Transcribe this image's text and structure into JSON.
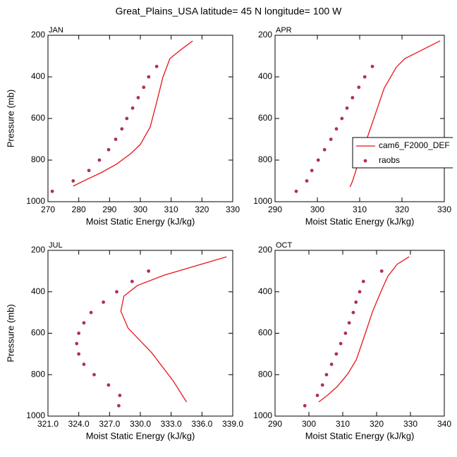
{
  "title": "Great_Plains_USA  latitude= 45 N longitude= 100 W",
  "chart_data": [
    {
      "type": "profile",
      "title": "JAN",
      "xlabel": "Moist Static Energy (kJ/kg)",
      "ylabel": "Pressure (mb)",
      "xlim": [
        270,
        330
      ],
      "xticks": [
        270,
        280,
        290,
        300,
        310,
        320,
        330
      ],
      "ylim": [
        200,
        1000
      ],
      "yticks": [
        200,
        400,
        600,
        800,
        1000
      ],
      "y_inverted": true,
      "series": [
        {
          "name": "cam6_F2000_DEF",
          "color": "#e8141c",
          "style": "line",
          "x": [
            317,
            313.3,
            309.6,
            307.3,
            305.3,
            303.2,
            300,
            296.8,
            292.2,
            287.2,
            281.9,
            278.2
          ],
          "y": [
            227,
            268,
            312,
            403,
            522,
            641,
            725,
            770,
            820,
            861,
            898,
            925
          ]
        },
        {
          "name": "raobs",
          "color": "#b0305a",
          "style": "markers",
          "x": [
            305.3,
            302.7,
            301.1,
            299.3,
            297.5,
            295.6,
            294,
            292,
            289.7,
            286.7,
            283.3,
            278.2,
            271.4
          ],
          "y": [
            350,
            400,
            450,
            500,
            550,
            600,
            650,
            700,
            750,
            800,
            850,
            900,
            950
          ]
        }
      ]
    },
    {
      "type": "profile",
      "title": "APR",
      "xlabel": "Moist Static Energy (kJ/kg)",
      "xlim": [
        290,
        330
      ],
      "xticks": [
        290,
        300,
        310,
        320,
        330
      ],
      "ylim": [
        200,
        1000
      ],
      "yticks": [
        200,
        400,
        600,
        800,
        1000
      ],
      "y_inverted": true,
      "legend": "right",
      "series": [
        {
          "name": "cam6_F2000_DEF",
          "color": "#e8141c",
          "style": "line",
          "x": [
            329,
            325,
            320.7,
            318.7,
            315.8,
            313.8,
            311.8,
            310,
            309.2,
            308.3,
            307.7
          ],
          "y": [
            227,
            268,
            312,
            352,
            454,
            573,
            692,
            776,
            844,
            902,
            929
          ]
        },
        {
          "name": "raobs",
          "color": "#b0305a",
          "style": "markers",
          "x": [
            313,
            311.2,
            309.8,
            308.3,
            307,
            305.8,
            304.5,
            303.2,
            301.7,
            300.2,
            298.7,
            297.5,
            295
          ],
          "y": [
            350,
            400,
            450,
            500,
            550,
            600,
            650,
            700,
            750,
            800,
            850,
            900,
            950
          ]
        }
      ]
    },
    {
      "type": "profile",
      "title": "JUL",
      "xlabel": "Moist Static Energy (kJ/kg)",
      "ylabel": "Pressure (mb)",
      "xlim": [
        321,
        339
      ],
      "xticks": [
        {
          "value": 321,
          "label": "321.0"
        },
        {
          "value": 324,
          "label": "324.0"
        },
        {
          "value": 327,
          "label": "327.0"
        },
        {
          "value": 330,
          "label": "330.0"
        },
        {
          "value": 333,
          "label": "333.0"
        },
        {
          "value": 336,
          "label": "336.0"
        },
        {
          "value": 339,
          "label": "339.0"
        }
      ],
      "ylim": [
        200,
        1000
      ],
      "yticks": [
        200,
        400,
        600,
        800,
        1000
      ],
      "y_inverted": true,
      "series": [
        {
          "name": "cam6_F2000_DEF",
          "color": "#e8141c",
          "style": "line",
          "x": [
            338.4,
            335.6,
            332.3,
            329.7,
            328.4,
            328.1,
            328.8,
            331.1,
            333.2,
            334.5
          ],
          "y": [
            231,
            272,
            320,
            370,
            421,
            493,
            575,
            694,
            830,
            932
          ]
        },
        {
          "name": "raobs",
          "color": "#b0305a",
          "style": "markers",
          "x": [
            330.8,
            329.2,
            327.7,
            326.4,
            325.2,
            324.5,
            324,
            323.8,
            324,
            324.5,
            325.5,
            326.9,
            328,
            327.9
          ],
          "y": [
            300,
            350,
            400,
            450,
            500,
            550,
            600,
            650,
            700,
            750,
            800,
            850,
            900,
            950
          ]
        }
      ]
    },
    {
      "type": "profile",
      "title": "OCT",
      "xlabel": "Moist Static Energy (kJ/kg)",
      "xlim": [
        290,
        340
      ],
      "xticks": [
        290,
        300,
        310,
        320,
        330,
        340
      ],
      "ylim": [
        200,
        1000
      ],
      "yticks": [
        200,
        400,
        600,
        800,
        1000
      ],
      "y_inverted": true,
      "series": [
        {
          "name": "cam6_F2000_DEF",
          "color": "#e8141c",
          "style": "line",
          "x": [
            329.6,
            326,
            323.3,
            321.3,
            318.8,
            316.5,
            314,
            311.5,
            308.4,
            305.6,
            302.9
          ],
          "y": [
            231,
            268,
            326,
            398,
            496,
            609,
            728,
            796,
            857,
            898,
            932
          ]
        },
        {
          "name": "raobs",
          "color": "#b0305a",
          "style": "markers",
          "x": [
            321.5,
            316.1,
            315,
            313.9,
            313.1,
            311.9,
            310.8,
            309.4,
            308.1,
            306.7,
            305.2,
            304,
            302.5,
            298.8
          ],
          "y": [
            300,
            350,
            400,
            450,
            500,
            550,
            600,
            650,
            700,
            750,
            800,
            850,
            900,
            950
          ]
        }
      ]
    }
  ]
}
